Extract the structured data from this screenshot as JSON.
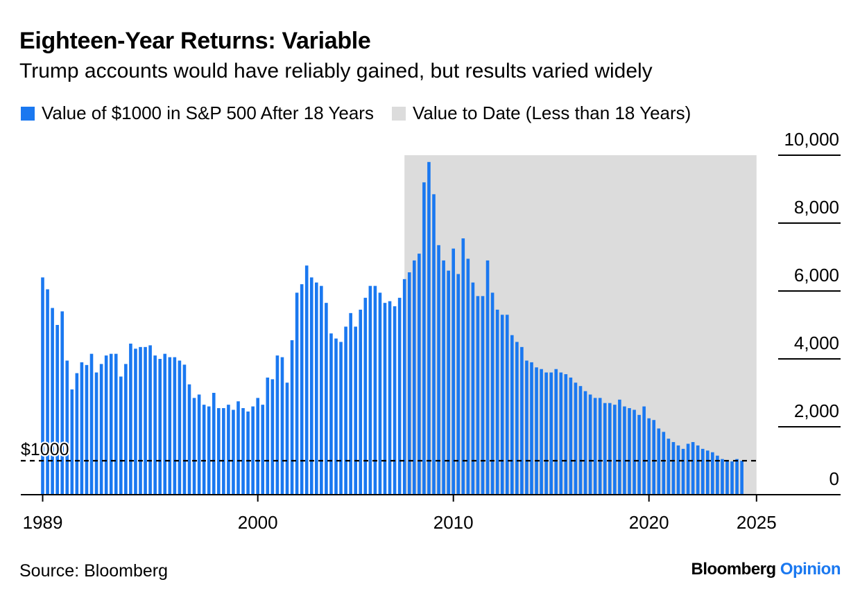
{
  "header": {
    "title": "Eighteen-Year Returns: Variable",
    "subtitle": "Trump accounts would have reliably gained, but results varied widely"
  },
  "legend": [
    {
      "label": "Value of $1000 in S&P 500 After 18 Years",
      "color": "#1a78f0"
    },
    {
      "label": "Value to Date (Less than 18 Years)",
      "color": "#dcdcdc"
    }
  ],
  "footer": {
    "source": "Source: Bloomberg",
    "brand_main": "Bloomberg",
    "brand_accent": "Opinion"
  },
  "colors": {
    "bar": "#1a78f0",
    "shade": "#dcdcdc",
    "axis": "#000000"
  },
  "chart_data": {
    "type": "bar",
    "x_label_ticks": [
      "1989",
      "2000",
      "2010",
      "2020",
      "2025"
    ],
    "x_tick_positions": [
      1989,
      2000,
      2010,
      2020,
      2025.5
    ],
    "y_ticks": [
      "10,000",
      "8,000",
      "6,000",
      "4,000",
      "2,000",
      "0"
    ],
    "y_tick_values": [
      10000,
      8000,
      6000,
      4000,
      2000,
      0
    ],
    "ylim": [
      0,
      10000
    ],
    "reference_line": {
      "value": 1000,
      "label": "$1000"
    },
    "shaded_region": {
      "x_start": 2007.5,
      "x_end": 2025.5
    },
    "x_start": 1989.0,
    "x_step": 0.25,
    "values": [
      6400,
      6050,
      5500,
      5000,
      5400,
      3950,
      3100,
      3580,
      3900,
      3820,
      4150,
      3600,
      3850,
      4100,
      4150,
      4150,
      3480,
      3850,
      4450,
      4300,
      4350,
      4350,
      4400,
      4100,
      4000,
      4150,
      4050,
      4050,
      3950,
      3830,
      3250,
      2850,
      2950,
      2650,
      2600,
      3000,
      2550,
      2550,
      2650,
      2500,
      2750,
      2550,
      2450,
      2600,
      2850,
      2650,
      3450,
      3400,
      4100,
      4050,
      3300,
      4550,
      5950,
      6200,
      6750,
      6400,
      6250,
      6150,
      5650,
      4750,
      4600,
      4500,
      4950,
      5350,
      4950,
      5450,
      5800,
      6150,
      6150,
      5950,
      5650,
      5700,
      5550,
      5800,
      6350,
      6550,
      6900,
      7100,
      9200,
      9800,
      8850,
      7350,
      6900,
      6600,
      7250,
      6500,
      7550,
      6950,
      6250,
      5850,
      5850,
      6900,
      5950,
      5450,
      5300,
      5300,
      4700,
      4500,
      4350,
      3950,
      3900,
      3750,
      3700,
      3600,
      3600,
      3700,
      3600,
      3550,
      3450,
      3300,
      3200,
      3050,
      2950,
      2850,
      2850,
      2700,
      2700,
      2650,
      2800,
      2600,
      2550,
      2500,
      2350,
      2600,
      2250,
      2200,
      1950,
      1850,
      1650,
      1550,
      1450,
      1350,
      1500,
      1550,
      1450,
      1350,
      1300,
      1250,
      1150,
      1050,
      1000,
      980,
      1050,
      1000
    ]
  }
}
